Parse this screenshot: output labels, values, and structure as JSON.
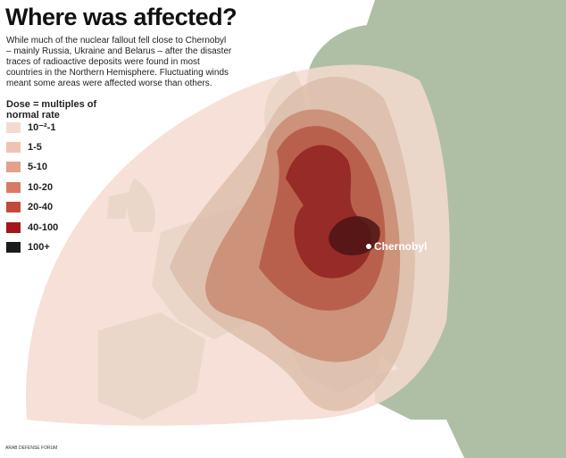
{
  "header": {
    "title": "Where was affected?",
    "description": [
      "While much of the nuclear fallout fell close to Chernobyl",
      "– mainly Russia, Ukraine and Belarus – after the disaster",
      "traces of radioactive deposits were found in most",
      "countries in the Northern Hemisphere. Fluctuating winds",
      "meant some areas were affected worse than others."
    ]
  },
  "legend": {
    "title": [
      "Dose = multiples of",
      "normal rate"
    ],
    "items": [
      {
        "label": "10⁻²-1",
        "color": "#f4dbd0"
      },
      {
        "label": "1-5",
        "color": "#efc3b2"
      },
      {
        "label": "5-10",
        "color": "#e3a08a"
      },
      {
        "label": "10-20",
        "color": "#d67c62"
      },
      {
        "label": "20-40",
        "color": "#c24a3a"
      },
      {
        "label": "40-100",
        "color": "#a3161b"
      },
      {
        "label": "100+",
        "color": "#1b1a1c"
      }
    ]
  },
  "map": {
    "label": "Chernobyl"
  },
  "watermark": {
    "text": "ARAB DEFENSE FORUM"
  }
}
